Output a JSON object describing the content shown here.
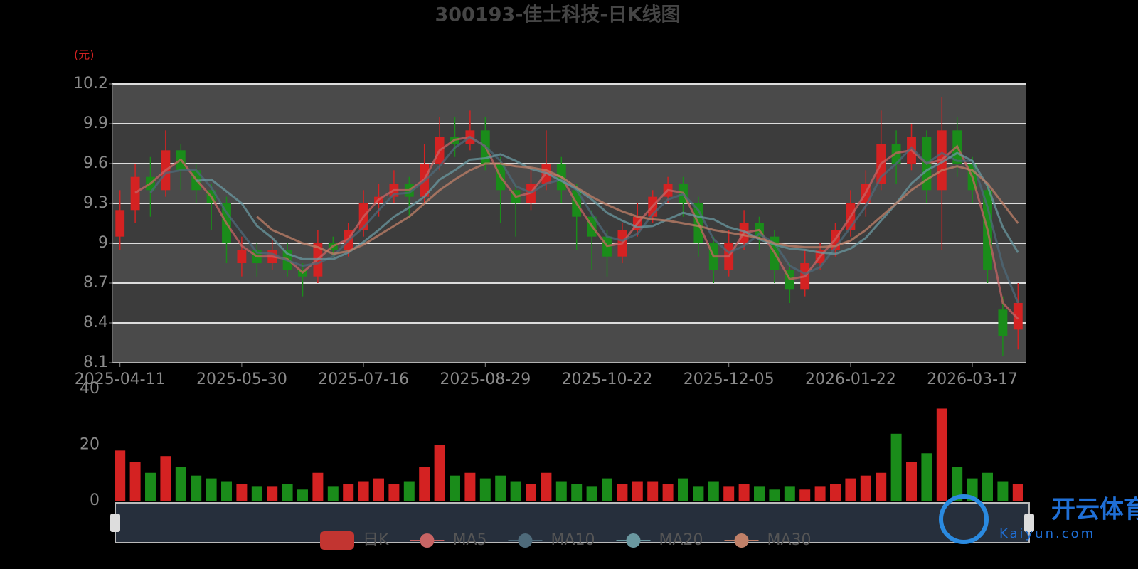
{
  "chart_data": {
    "type": "candlestick",
    "title": "300193-佳士科技-日K线图",
    "y_unit": "(元)",
    "watermark": [
      "开云体育",
      "Kaiyun.com"
    ],
    "categories": [
      "2025-04-11",
      null,
      null,
      null,
      null,
      null,
      null,
      null,
      "2025-05-30",
      null,
      null,
      null,
      null,
      null,
      null,
      null,
      "2025-07-16",
      null,
      null,
      null,
      null,
      null,
      null,
      null,
      "2025-08-29",
      null,
      null,
      null,
      null,
      null,
      null,
      null,
      "2025-10-22",
      null,
      null,
      null,
      null,
      null,
      null,
      null,
      "2025-12-05",
      null,
      null,
      null,
      null,
      null,
      null,
      null,
      "2026-01-22",
      null,
      null,
      null,
      null,
      null,
      null,
      null,
      "2026-03-17",
      null,
      null,
      null
    ],
    "ylim": [
      8.1,
      10.2
    ],
    "yticks": [
      8.1,
      8.4,
      8.7,
      9,
      9.3,
      9.6,
      9.9,
      10.2
    ],
    "grid": true,
    "up_color": "#d42222",
    "down_color": "#1a8c1a",
    "series": [
      {
        "name": "日K",
        "color": "#c23531",
        "values": [
          [
            9.05,
            9.25,
            8.95,
            9.4
          ],
          [
            9.25,
            9.5,
            9.15,
            9.6
          ],
          [
            9.5,
            9.4,
            9.2,
            9.65
          ],
          [
            9.4,
            9.7,
            9.35,
            9.85
          ],
          [
            9.7,
            9.55,
            9.4,
            9.75
          ],
          [
            9.55,
            9.4,
            9.3,
            9.6
          ],
          [
            9.4,
            9.3,
            9.1,
            9.45
          ],
          [
            9.3,
            9.0,
            8.85,
            9.35
          ],
          [
            8.85,
            8.95,
            8.75,
            9.05
          ],
          [
            8.95,
            8.85,
            8.75,
            9.0
          ],
          [
            8.85,
            8.95,
            8.8,
            9.05
          ],
          [
            8.95,
            8.8,
            8.75,
            9.0
          ],
          [
            8.8,
            8.75,
            8.6,
            8.85
          ],
          [
            8.75,
            9.0,
            8.7,
            9.1
          ],
          [
            9.0,
            8.95,
            8.9,
            9.05
          ],
          [
            8.95,
            9.1,
            8.9,
            9.15
          ],
          [
            9.1,
            9.3,
            9.05,
            9.4
          ],
          [
            9.3,
            9.35,
            9.2,
            9.45
          ],
          [
            9.35,
            9.45,
            9.3,
            9.55
          ],
          [
            9.45,
            9.35,
            9.2,
            9.5
          ],
          [
            9.35,
            9.6,
            9.3,
            9.75
          ],
          [
            9.6,
            9.8,
            9.55,
            9.95
          ],
          [
            9.8,
            9.75,
            9.65,
            9.95
          ],
          [
            9.75,
            9.85,
            9.7,
            10.0
          ],
          [
            9.85,
            9.6,
            9.55,
            9.95
          ],
          [
            9.6,
            9.4,
            9.15,
            9.65
          ],
          [
            9.4,
            9.3,
            9.05,
            9.45
          ],
          [
            9.3,
            9.45,
            9.25,
            9.55
          ],
          [
            9.45,
            9.6,
            9.4,
            9.85
          ],
          [
            9.6,
            9.4,
            9.3,
            9.65
          ],
          [
            9.4,
            9.2,
            8.95,
            9.45
          ],
          [
            9.2,
            9.05,
            8.8,
            9.25
          ],
          [
            9.05,
            8.9,
            8.75,
            9.1
          ],
          [
            8.9,
            9.1,
            8.85,
            9.15
          ],
          [
            9.1,
            9.2,
            9.05,
            9.3
          ],
          [
            9.2,
            9.35,
            9.15,
            9.4
          ],
          [
            9.35,
            9.45,
            9.3,
            9.5
          ],
          [
            9.45,
            9.3,
            9.2,
            9.5
          ],
          [
            9.3,
            9.0,
            8.9,
            9.35
          ],
          [
            9.0,
            8.8,
            8.7,
            9.05
          ],
          [
            8.8,
            9.0,
            8.75,
            9.1
          ],
          [
            9.0,
            9.15,
            8.95,
            9.25
          ],
          [
            9.15,
            9.05,
            8.95,
            9.2
          ],
          [
            9.05,
            8.8,
            8.7,
            9.1
          ],
          [
            8.8,
            8.65,
            8.55,
            8.85
          ],
          [
            8.65,
            8.85,
            8.6,
            8.95
          ],
          [
            8.85,
            8.95,
            8.8,
            9.0
          ],
          [
            8.95,
            9.1,
            8.9,
            9.15
          ],
          [
            9.1,
            9.3,
            9.05,
            9.4
          ],
          [
            9.3,
            9.45,
            9.2,
            9.55
          ],
          [
            9.45,
            9.75,
            9.4,
            10.0
          ],
          [
            9.75,
            9.6,
            9.45,
            9.85
          ],
          [
            9.6,
            9.8,
            9.55,
            9.9
          ],
          [
            9.8,
            9.4,
            9.3,
            9.85
          ],
          [
            9.4,
            9.85,
            8.95,
            10.1
          ],
          [
            9.85,
            9.6,
            9.5,
            9.95
          ],
          [
            9.6,
            9.4,
            9.3,
            9.65
          ],
          [
            9.4,
            8.8,
            8.7,
            9.45
          ],
          [
            8.5,
            8.3,
            8.15,
            8.6
          ],
          [
            8.35,
            8.55,
            8.2,
            8.7
          ]
        ]
      },
      {
        "name": "MA5",
        "color": "#c86464",
        "values": [
          null,
          9.38,
          9.45,
          9.55,
          9.63,
          9.48,
          9.35,
          9.15,
          8.98,
          8.9,
          8.9,
          8.88,
          8.78,
          8.88,
          8.98,
          9.03,
          9.2,
          9.33,
          9.4,
          9.4,
          9.48,
          9.7,
          9.78,
          9.8,
          9.73,
          9.5,
          9.35,
          9.38,
          9.53,
          9.5,
          9.3,
          9.13,
          8.98,
          9.0,
          9.15,
          9.28,
          9.4,
          9.38,
          9.15,
          8.9,
          8.9,
          9.08,
          9.1,
          8.93,
          8.73,
          8.75,
          8.9,
          9.03,
          9.2,
          9.38,
          9.6,
          9.68,
          9.7,
          9.6,
          9.63,
          9.73,
          9.5,
          9.1,
          8.55,
          8.43
        ]
      },
      {
        "name": "MA10",
        "color": "#4e6a7a",
        "values": [
          null,
          null,
          9.38,
          9.53,
          9.55,
          9.55,
          9.42,
          9.23,
          9.08,
          8.93,
          8.92,
          8.87,
          8.83,
          8.85,
          8.9,
          9.02,
          9.12,
          9.25,
          9.37,
          9.38,
          9.47,
          9.58,
          9.72,
          9.8,
          9.73,
          9.62,
          9.43,
          9.38,
          9.45,
          9.48,
          9.4,
          9.22,
          9.05,
          9.02,
          9.07,
          9.22,
          9.33,
          9.37,
          9.25,
          9.03,
          8.93,
          8.98,
          9.07,
          9.0,
          8.83,
          8.77,
          8.82,
          8.97,
          9.12,
          9.28,
          9.5,
          9.6,
          9.72,
          9.6,
          9.68,
          9.62,
          9.62,
          9.27,
          8.83,
          8.55
        ]
      },
      {
        "name": "MA20",
        "color": "#6a98a0",
        "values": [
          null,
          null,
          null,
          null,
          null,
          9.47,
          9.48,
          9.39,
          9.3,
          9.13,
          9.04,
          8.92,
          8.88,
          8.88,
          8.88,
          8.93,
          9.01,
          9.1,
          9.2,
          9.27,
          9.35,
          9.48,
          9.55,
          9.63,
          9.64,
          9.67,
          9.62,
          9.56,
          9.53,
          9.47,
          9.41,
          9.33,
          9.23,
          9.17,
          9.12,
          9.13,
          9.18,
          9.23,
          9.2,
          9.18,
          9.12,
          9.09,
          9.03,
          8.99,
          8.96,
          8.95,
          8.93,
          8.92,
          8.96,
          9.04,
          9.17,
          9.3,
          9.45,
          9.55,
          9.61,
          9.68,
          9.62,
          9.43,
          9.12,
          8.93
        ]
      },
      {
        "name": "MA30",
        "color": "#c08068",
        "values": [
          null,
          null,
          null,
          null,
          null,
          null,
          null,
          null,
          null,
          9.2,
          9.1,
          9.05,
          9.0,
          8.97,
          8.92,
          8.94,
          8.99,
          9.06,
          9.13,
          9.2,
          9.3,
          9.4,
          9.48,
          9.55,
          9.6,
          9.6,
          9.58,
          9.57,
          9.55,
          9.5,
          9.42,
          9.35,
          9.29,
          9.24,
          9.2,
          9.18,
          9.17,
          9.15,
          9.13,
          9.1,
          9.08,
          9.06,
          9.04,
          9.0,
          8.98,
          8.97,
          8.97,
          8.98,
          9.02,
          9.1,
          9.2,
          9.3,
          9.4,
          9.48,
          9.55,
          9.58,
          9.55,
          9.45,
          9.3,
          9.15
        ]
      }
    ],
    "volume": {
      "ylim": [
        0,
        40
      ],
      "yticks": [
        0,
        20,
        40
      ],
      "values": [
        18,
        14,
        10,
        16,
        12,
        9,
        8,
        7,
        6,
        5,
        5,
        6,
        4,
        10,
        5,
        6,
        7,
        8,
        6,
        7,
        12,
        20,
        9,
        10,
        8,
        9,
        7,
        6,
        10,
        7,
        6,
        5,
        8,
        6,
        7,
        7,
        6,
        8,
        5,
        7,
        5,
        6,
        5,
        4,
        5,
        4,
        5,
        6,
        8,
        9,
        10,
        24,
        14,
        17,
        33,
        12,
        8,
        10,
        7,
        6
      ]
    }
  }
}
